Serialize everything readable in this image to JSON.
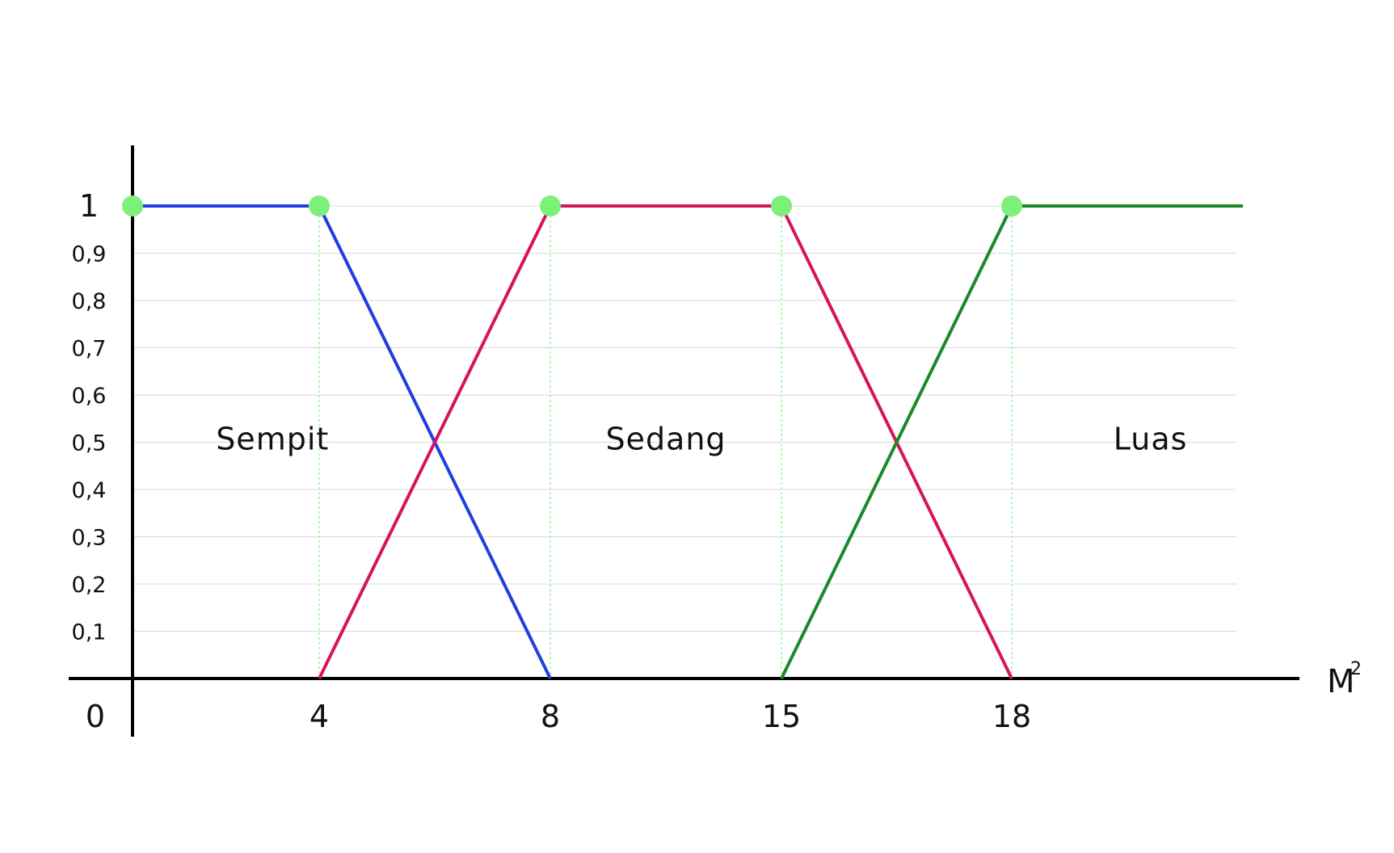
{
  "chart_data": {
    "type": "line",
    "title": "",
    "xlabel": "M",
    "xlabel_superscript": "2",
    "ylabel": "",
    "origin_label": "0",
    "xlim": [
      0,
      24
    ],
    "ylim": [
      0,
      1
    ],
    "x_ticks": [
      {
        "value": 4,
        "label": "4"
      },
      {
        "value": 8,
        "label": "8"
      },
      {
        "value": 15,
        "label": "15"
      },
      {
        "value": 18,
        "label": "18"
      }
    ],
    "y_ticks": [
      {
        "value": 0.1,
        "label": "0,1"
      },
      {
        "value": 0.2,
        "label": "0,2"
      },
      {
        "value": 0.3,
        "label": "0,3"
      },
      {
        "value": 0.4,
        "label": "0,4"
      },
      {
        "value": 0.5,
        "label": "0,5"
      },
      {
        "value": 0.6,
        "label": "0,6"
      },
      {
        "value": 0.7,
        "label": "0,7"
      },
      {
        "value": 0.8,
        "label": "0,8"
      },
      {
        "value": 0.9,
        "label": "0,9"
      },
      {
        "value": 1,
        "label": "1"
      }
    ],
    "grid": true,
    "series": [
      {
        "name": "Sempit",
        "color": "#1f3fe0",
        "label_at": [
          3,
          0.49
        ],
        "points": [
          [
            0,
            1
          ],
          [
            4,
            1
          ],
          [
            8,
            0
          ]
        ]
      },
      {
        "name": "Sedang",
        "color": "#d4155a",
        "label_at": [
          11.5,
          0.49
        ],
        "points": [
          [
            4,
            0
          ],
          [
            8,
            1
          ],
          [
            15,
            1
          ],
          [
            18,
            0
          ]
        ]
      },
      {
        "name": "Luas",
        "color": "#1a8a2a",
        "label_at": [
          21,
          0.49
        ],
        "points": [
          [
            15,
            0
          ],
          [
            18,
            1
          ],
          [
            23,
            1
          ]
        ]
      }
    ],
    "markers": {
      "color": "#7df07a",
      "points": [
        [
          0,
          1
        ],
        [
          4,
          1
        ],
        [
          8,
          1
        ],
        [
          15,
          1
        ],
        [
          18,
          1
        ]
      ]
    },
    "guide_lines_x": [
      4,
      8,
      15,
      18
    ]
  }
}
